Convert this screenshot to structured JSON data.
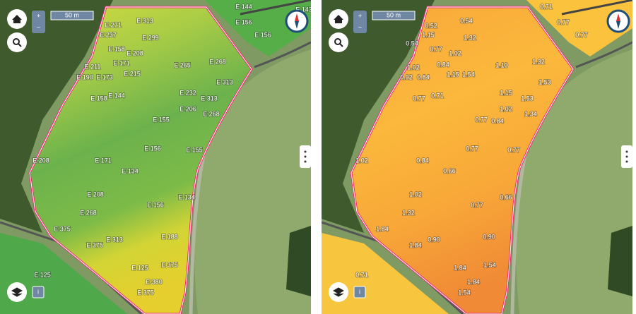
{
  "panels": [
    {
      "scale_label": "50 m",
      "zoom_in": "+",
      "zoom_out": "−",
      "info": "i",
      "labels": [
        "E 144",
        "E 156",
        "E 156",
        "E 143",
        "E 271",
        "E 313",
        "E 237",
        "E 299",
        "E 158",
        "E 208",
        "E 211",
        "E 171",
        "E 265",
        "E 268",
        "E 190",
        "E 173",
        "E 215",
        "E 313",
        "E 144",
        "E 158",
        "E 232",
        "E 313",
        "E 206",
        "E 268",
        "E 155",
        "E 156",
        "E 155",
        "E 208",
        "E 171",
        "E 134",
        "E 208",
        "E 134",
        "E 156",
        "E 268",
        "E 375",
        "E 188",
        "E 313",
        "E 375",
        "E 125",
        "E 125",
        "E 375",
        "E 380",
        "E 375"
      ]
    },
    {
      "scale_label": "50 m",
      "zoom_in": "+",
      "zoom_out": "−",
      "info": "i",
      "labels": [
        "0.71",
        "0.77",
        "0.77",
        "0.52",
        "0.54",
        "1.15",
        "1.32",
        "0.54",
        "0.77",
        "1.02",
        "1.02",
        "0.84",
        "1.10",
        "1.32",
        "0.92",
        "0.84",
        "1.15",
        "1.54",
        "1.53",
        "0.77",
        "0.71",
        "1.15",
        "1.53",
        "1.02",
        "1.34",
        "0.77",
        "0.84",
        "0.77",
        "0.77",
        "1.02",
        "0.84",
        "0.66",
        "1.02",
        "0.66",
        "0.77",
        "1.32",
        "1.84",
        "0.90",
        "0.90",
        "1.84",
        "0.71",
        "1.84",
        "1.54",
        "1.84",
        "1.54"
      ]
    }
  ]
}
